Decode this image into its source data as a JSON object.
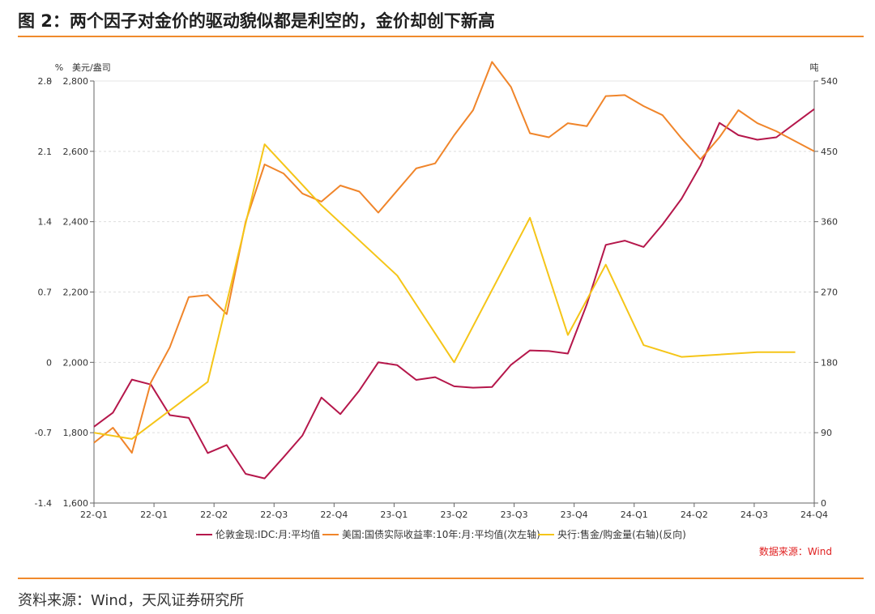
{
  "figure_title": "图 2：两个因子对金价的驱动貌似都是利空的，金价却创下新高",
  "footer_source": "资料来源：Wind，天风证券研究所",
  "colors": {
    "accent_rule": "#f08a2c",
    "series_gold_price": "#b5174b",
    "series_real_yield": "#f0852a",
    "series_cb_buying": "#f5c518",
    "source_note": "#e02020"
  },
  "chart_data": {
    "type": "line",
    "title": "",
    "unit_label_outer_left": "%",
    "unit_label_inner_left": "美元/盎司",
    "unit_label_right": "吨",
    "source_note": "数据来源：Wind",
    "x_ticks": [
      "22-Q1",
      "22-Q1",
      "22-Q2",
      "22-Q3",
      "22-Q4",
      "23-Q1",
      "23-Q2",
      "23-Q3",
      "23-Q4",
      "24-Q1",
      "24-Q2",
      "24-Q3",
      "24-Q4"
    ],
    "axis_outer_left": {
      "ticks": [
        "2.8",
        "2.1",
        "1.4",
        "0.7",
        "0",
        "-0.7",
        "-1.4"
      ],
      "range": [
        -1.4,
        2.8
      ]
    },
    "axis_inner_left": {
      "ticks": [
        "2,800",
        "2,600",
        "2,400",
        "2,200",
        "2,000",
        "1,800",
        "1,600"
      ],
      "range": [
        1600,
        2800
      ]
    },
    "axis_right": {
      "ticks": [
        "540",
        "450",
        "360",
        "270",
        "180",
        "90",
        "0"
      ],
      "range": [
        0,
        540
      ]
    },
    "grid": true,
    "legend_position": "bottom",
    "series": [
      {
        "name": "伦敦金现:IDC:月:平均值",
        "axis": "inner_left",
        "x": [
          0,
          1,
          2,
          3,
          4,
          5,
          6,
          7,
          8,
          9,
          10,
          11,
          12,
          13,
          14,
          15,
          16,
          17,
          18,
          19,
          20,
          21,
          22,
          23,
          24,
          25,
          26,
          27,
          28,
          29,
          30,
          31,
          32,
          33,
          34,
          35,
          36,
          37,
          38
        ],
        "values": [
          1817,
          1857,
          1951,
          1937,
          1850,
          1842,
          1742,
          1765,
          1683,
          1670,
          1730,
          1792,
          1900,
          1853,
          1920,
          2000,
          1992,
          1950,
          1958,
          1932,
          1928,
          1930,
          1993,
          2034,
          2032,
          2025,
          2165,
          2334,
          2346,
          2328,
          2392,
          2465,
          2560,
          2681,
          2646,
          2633,
          2640,
          2680,
          2720
        ]
      },
      {
        "name": "美国:国债实际收益率:10年:月:平均值(次左轴)",
        "axis": "outer_left",
        "x": [
          0,
          1,
          2,
          3,
          4,
          5,
          6,
          7,
          8,
          9,
          10,
          11,
          12,
          13,
          14,
          15,
          16,
          17,
          18,
          19,
          20,
          21,
          22,
          23,
          24,
          25,
          26,
          27,
          28,
          29,
          30,
          31,
          32,
          33,
          34,
          35,
          36,
          37,
          38
        ],
        "values": [
          -0.8,
          -0.65,
          -0.9,
          -0.2,
          0.15,
          0.65,
          0.67,
          0.48,
          1.4,
          1.97,
          1.88,
          1.68,
          1.6,
          1.76,
          1.7,
          1.49,
          1.71,
          1.93,
          1.98,
          2.26,
          2.51,
          2.99,
          2.74,
          2.28,
          2.24,
          2.38,
          2.35,
          2.65,
          2.66,
          2.55,
          2.46,
          2.23,
          2.02,
          2.24,
          2.51,
          2.38,
          2.3,
          2.2,
          2.1
        ]
      },
      {
        "name": "央行:售金/购金量(右轴)(反向)",
        "axis": "right",
        "x": [
          0,
          2,
          6,
          9,
          12,
          16,
          19,
          23,
          25,
          27,
          29,
          31,
          33,
          35,
          37
        ],
        "values": [
          90,
          82,
          155,
          459,
          381,
          291,
          180,
          365,
          215,
          305,
          202,
          187,
          190,
          193,
          193
        ]
      }
    ]
  }
}
